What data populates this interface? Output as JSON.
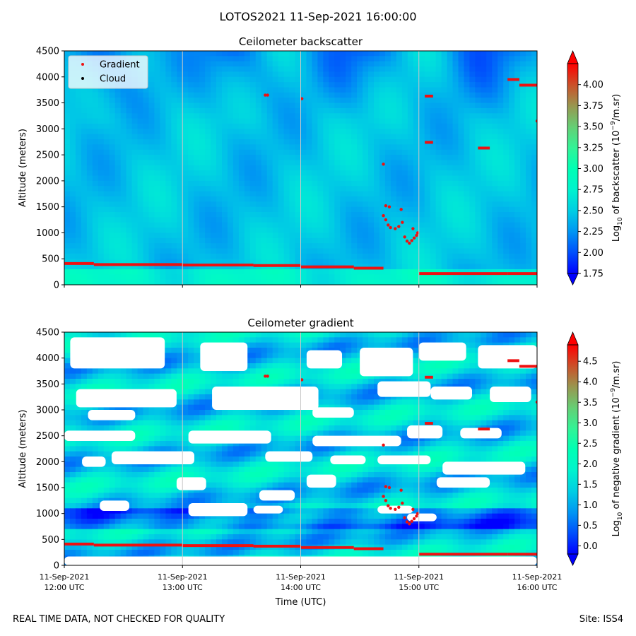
{
  "figure": {
    "suptitle": "LOTOS2021 11-Sep-2021 16:00:00",
    "footer_left": "REAL TIME DATA, NOT CHECKED FOR QUALITY",
    "footer_right": "Site: ISS4",
    "xlabel": "Time (UTC)",
    "colormap": "rainbow",
    "colors": {
      "gradient_marker": "#ee1111",
      "cloud_marker": "#000000",
      "grid": "#c8c8c8"
    }
  },
  "chart_data": [
    {
      "type": "heatmap",
      "title": "Ceilometer backscatter",
      "ylabel": "Altitude (meters)",
      "ylim": [
        0,
        4500
      ],
      "yticks": [
        0,
        500,
        1000,
        1500,
        2000,
        2500,
        3000,
        3500,
        4000,
        4500
      ],
      "xlim": [
        "11-Sep-2021 12:00",
        "11-Sep-2021 16:00"
      ],
      "xtick_labels": [
        [
          "11-Sep-2021",
          "12:00 UTC"
        ],
        [
          "11-Sep-2021",
          "13:00 UTC"
        ],
        [
          "11-Sep-2021",
          "14:00 UTC"
        ],
        [
          "11-Sep-2021",
          "15:00 UTC"
        ],
        [
          "11-Sep-2021",
          "16:00 UTC"
        ]
      ],
      "xtick_labels_visible": false,
      "grid": "vertical",
      "legend": {
        "placement": "top-left",
        "entries": [
          {
            "label": "Gradient",
            "color": "#ee1111"
          },
          {
            "label": "Cloud",
            "color": "#000000"
          }
        ]
      },
      "colorbar": {
        "label_prefix": "Log",
        "label_sub": "10",
        "label_mid": " of backscatter (10",
        "label_sup": "−9",
        "label_suffix": "/m.sr)",
        "vmin": 1.75,
        "vmax": 4.25,
        "ticks": [
          "1.75",
          "2.00",
          "2.25",
          "2.50",
          "2.75",
          "3.00",
          "3.25",
          "3.50",
          "3.75",
          "4.00"
        ],
        "extend": "both"
      },
      "field": {
        "base_value": 2.45,
        "white_patches": []
      }
    },
    {
      "type": "heatmap",
      "title": "Ceilometer gradient",
      "ylabel": "Altitude (meters)",
      "ylim": [
        0,
        4500
      ],
      "yticks": [
        0,
        500,
        1000,
        1500,
        2000,
        2500,
        3000,
        3500,
        4000,
        4500
      ],
      "xlim": [
        "11-Sep-2021 12:00",
        "11-Sep-2021 16:00"
      ],
      "xtick_labels": [
        [
          "11-Sep-2021",
          "12:00 UTC"
        ],
        [
          "11-Sep-2021",
          "13:00 UTC"
        ],
        [
          "11-Sep-2021",
          "14:00 UTC"
        ],
        [
          "11-Sep-2021",
          "15:00 UTC"
        ],
        [
          "11-Sep-2021",
          "16:00 UTC"
        ]
      ],
      "xtick_labels_visible": true,
      "grid": "vertical",
      "colorbar": {
        "label_prefix": "Log",
        "label_sub": "10",
        "label_mid": " of negative gradient (10",
        "label_sup": "−9",
        "label_suffix": "/m.sr)",
        "vmin": -0.2,
        "vmax": 4.9,
        "ticks": [
          "0.0",
          "0.5",
          "1.0",
          "1.5",
          "2.0",
          "2.5",
          "3.0",
          "3.5",
          "4.0",
          "4.5"
        ],
        "extend": "both"
      },
      "field": {
        "base_value": 1.4,
        "white_patches": [
          {
            "t": [
              12.05,
              12.85
            ],
            "alt": [
              3800,
              4400
            ]
          },
          {
            "t": [
              13.15,
              13.55
            ],
            "alt": [
              3750,
              4300
            ]
          },
          {
            "t": [
              14.05,
              14.35
            ],
            "alt": [
              3800,
              4150
            ]
          },
          {
            "t": [
              14.5,
              14.95
            ],
            "alt": [
              3650,
              4200
            ]
          },
          {
            "t": [
              15.0,
              15.4
            ],
            "alt": [
              3950,
              4300
            ]
          },
          {
            "t": [
              15.5,
              16.0
            ],
            "alt": [
              3800,
              4250
            ]
          },
          {
            "t": [
              12.1,
              12.95
            ],
            "alt": [
              3050,
              3400
            ]
          },
          {
            "t": [
              13.25,
              14.15
            ],
            "alt": [
              3000,
              3450
            ]
          },
          {
            "t": [
              14.65,
              15.1
            ],
            "alt": [
              3250,
              3550
            ]
          },
          {
            "t": [
              15.1,
              15.45
            ],
            "alt": [
              3200,
              3450
            ]
          },
          {
            "t": [
              15.6,
              15.95
            ],
            "alt": [
              3150,
              3450
            ]
          },
          {
            "t": [
              12.2,
              12.6
            ],
            "alt": [
              2800,
              3000
            ]
          },
          {
            "t": [
              14.1,
              14.45
            ],
            "alt": [
              2850,
              3050
            ]
          },
          {
            "t": [
              12.0,
              12.6
            ],
            "alt": [
              2400,
              2600
            ]
          },
          {
            "t": [
              13.05,
              13.75
            ],
            "alt": [
              2350,
              2600
            ]
          },
          {
            "t": [
              14.1,
              14.85
            ],
            "alt": [
              2300,
              2500
            ]
          },
          {
            "t": [
              14.9,
              15.2
            ],
            "alt": [
              2450,
              2700
            ]
          },
          {
            "t": [
              15.35,
              15.7
            ],
            "alt": [
              2450,
              2650
            ]
          },
          {
            "t": [
              12.15,
              12.35
            ],
            "alt": [
              1900,
              2100
            ]
          },
          {
            "t": [
              12.4,
              13.1
            ],
            "alt": [
              1950,
              2200
            ]
          },
          {
            "t": [
              13.7,
              14.1
            ],
            "alt": [
              2000,
              2200
            ]
          },
          {
            "t": [
              14.25,
              14.55
            ],
            "alt": [
              1950,
              2120
            ]
          },
          {
            "t": [
              14.65,
              15.1
            ],
            "alt": [
              1950,
              2120
            ]
          },
          {
            "t": [
              15.2,
              15.9
            ],
            "alt": [
              1750,
              2000
            ]
          },
          {
            "t": [
              12.95,
              13.2
            ],
            "alt": [
              1450,
              1700
            ]
          },
          {
            "t": [
              13.65,
              13.95
            ],
            "alt": [
              1250,
              1450
            ]
          },
          {
            "t": [
              14.05,
              14.3
            ],
            "alt": [
              1500,
              1750
            ]
          },
          {
            "t": [
              15.15,
              15.6
            ],
            "alt": [
              1500,
              1700
            ]
          },
          {
            "t": [
              12.3,
              12.55
            ],
            "alt": [
              1050,
              1250
            ]
          },
          {
            "t": [
              13.05,
              13.55
            ],
            "alt": [
              950,
              1200
            ]
          },
          {
            "t": [
              13.6,
              13.85
            ],
            "alt": [
              1000,
              1150
            ]
          },
          {
            "t": [
              14.65,
              14.95
            ],
            "alt": [
              1000,
              1150
            ]
          },
          {
            "t": [
              14.9,
              15.15
            ],
            "alt": [
              850,
              1000
            ]
          },
          {
            "t": [
              12.0,
              16.0
            ],
            "alt": [
              0,
              170
            ]
          }
        ]
      }
    }
  ],
  "overlay_series": [
    {
      "name": "Gradient",
      "note_for_both_panels": true,
      "segments": [
        {
          "t": [
            12.0,
            12.25
          ],
          "alt": 410
        },
        {
          "t": [
            12.25,
            13.0
          ],
          "alt": 390
        },
        {
          "t": [
            13.0,
            13.6
          ],
          "alt": 380
        },
        {
          "t": [
            13.6,
            14.0
          ],
          "alt": 370
        },
        {
          "t": [
            14.0,
            14.45
          ],
          "alt": 345
        },
        {
          "t": [
            14.45,
            14.7
          ],
          "alt": 320
        },
        {
          "t": [
            15.0,
            15.75
          ],
          "alt": 215
        },
        {
          "t": [
            15.75,
            16.0
          ],
          "alt": 215
        },
        {
          "t": [
            15.05,
            15.12
          ],
          "alt": 3630
        },
        {
          "t": [
            15.05,
            15.12
          ],
          "alt": 2740
        },
        {
          "t": [
            15.5,
            15.6
          ],
          "alt": 2630
        },
        {
          "t": [
            15.75,
            15.85
          ],
          "alt": 3950
        },
        {
          "t": [
            15.85,
            16.0
          ],
          "alt": 3840
        }
      ],
      "points": [
        [
          13.7,
          3650
        ],
        [
          13.72,
          3650
        ],
        [
          14.01,
          3580
        ],
        [
          14.7,
          2320
        ],
        [
          14.72,
          1520
        ],
        [
          14.75,
          1500
        ],
        [
          14.85,
          1450
        ],
        [
          14.7,
          1330
        ],
        [
          14.72,
          1250
        ],
        [
          14.74,
          1150
        ],
        [
          14.76,
          1100
        ],
        [
          14.8,
          1080
        ],
        [
          14.83,
          1120
        ],
        [
          14.86,
          1200
        ],
        [
          14.88,
          920
        ],
        [
          14.9,
          840
        ],
        [
          14.92,
          800
        ],
        [
          14.94,
          850
        ],
        [
          14.96,
          900
        ],
        [
          14.98,
          950
        ],
        [
          14.99,
          1000
        ],
        [
          14.95,
          1080
        ],
        [
          16.0,
          3150
        ]
      ]
    }
  ]
}
